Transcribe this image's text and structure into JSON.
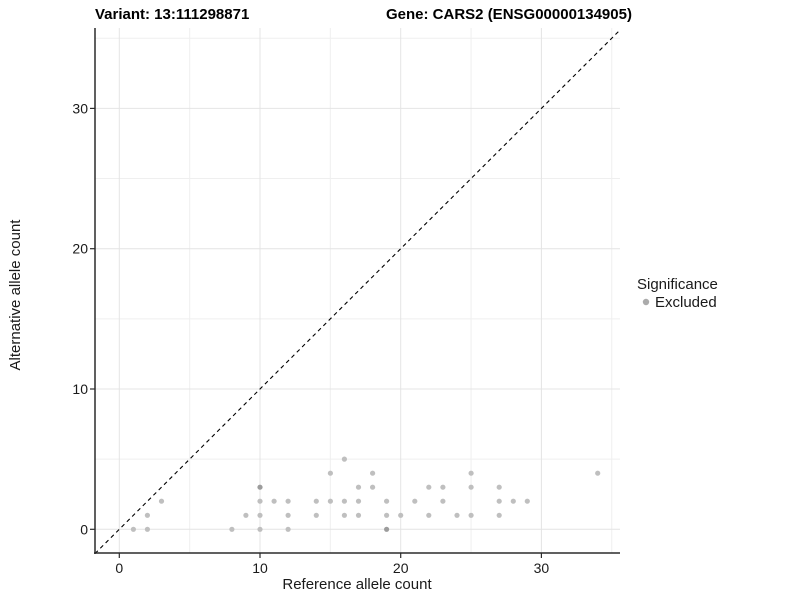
{
  "titles": {
    "variant": "Variant: 13:111298871",
    "gene": "Gene: CARS2 (ENSG00000134905)"
  },
  "axes": {
    "x": {
      "label": "Reference allele count",
      "major_ticks": [
        0,
        10,
        20,
        30
      ],
      "minor_ticks": [
        5,
        15,
        25,
        35
      ],
      "range": [
        -1.7,
        35.6
      ]
    },
    "y": {
      "label": "Alternative allele count",
      "major_ticks": [
        0,
        10,
        20,
        30
      ],
      "minor_ticks": [
        5,
        15,
        25,
        35
      ],
      "range": [
        -1.7,
        35.7
      ]
    }
  },
  "legend": {
    "title": "Significance",
    "items": [
      {
        "label": "Excluded",
        "color": "#ababab"
      }
    ]
  },
  "colors": {
    "point": "#bfbfbf",
    "point_dark": "#9c9c9c",
    "grid_major": "#e4e4e4",
    "grid_minor": "#efefef",
    "axis_line": "#2b2b2b",
    "identity_line": "#000000",
    "background": "#ffffff"
  },
  "chart_data": {
    "type": "scatter",
    "title_left": "Variant: 13:111298871",
    "title_right": "Gene: CARS2 (ENSG00000134905)",
    "xlabel": "Reference allele count",
    "ylabel": "Alternative allele count",
    "xlim": [
      -1.7,
      35.6
    ],
    "ylim": [
      -1.7,
      35.7
    ],
    "x_ticks": [
      0,
      10,
      20,
      30
    ],
    "y_ticks": [
      0,
      10,
      20,
      30
    ],
    "grid": true,
    "legend_position": "right",
    "identity_line": {
      "shown": true,
      "style": "dashed",
      "equation": "y = x"
    },
    "series": [
      {
        "name": "Excluded",
        "marker": "circle",
        "color": "#bfbfbf",
        "points": [
          [
            1,
            0,
            1
          ],
          [
            2,
            0,
            1
          ],
          [
            2,
            1,
            1
          ],
          [
            3,
            2,
            1
          ],
          [
            8,
            0,
            1
          ],
          [
            9,
            1,
            1
          ],
          [
            10,
            0,
            1
          ],
          [
            10,
            1,
            1
          ],
          [
            10,
            2,
            1
          ],
          [
            10,
            3,
            2
          ],
          [
            11,
            2,
            1
          ],
          [
            12,
            0,
            1
          ],
          [
            12,
            1,
            1
          ],
          [
            12,
            2,
            1
          ],
          [
            14,
            1,
            1
          ],
          [
            14,
            2,
            1
          ],
          [
            15,
            2,
            1
          ],
          [
            15,
            4,
            1
          ],
          [
            16,
            1,
            1
          ],
          [
            16,
            2,
            1
          ],
          [
            16,
            5,
            1
          ],
          [
            17,
            1,
            1
          ],
          [
            17,
            2,
            1
          ],
          [
            17,
            3,
            1
          ],
          [
            18,
            3,
            1
          ],
          [
            18,
            4,
            1
          ],
          [
            19,
            0,
            2
          ],
          [
            19,
            1,
            1
          ],
          [
            19,
            2,
            1
          ],
          [
            20,
            1,
            1
          ],
          [
            21,
            2,
            1
          ],
          [
            22,
            1,
            1
          ],
          [
            22,
            3,
            1
          ],
          [
            23,
            2,
            1
          ],
          [
            23,
            3,
            1
          ],
          [
            24,
            1,
            1
          ],
          [
            25,
            1,
            1
          ],
          [
            25,
            3,
            1
          ],
          [
            25,
            4,
            1
          ],
          [
            27,
            1,
            1
          ],
          [
            27,
            2,
            1
          ],
          [
            27,
            3,
            1
          ],
          [
            28,
            2,
            1
          ],
          [
            29,
            2,
            1
          ],
          [
            34,
            4,
            1
          ]
        ],
        "point_note": "third value = overplot weight (2 = visibly darker stacked points)"
      }
    ]
  }
}
